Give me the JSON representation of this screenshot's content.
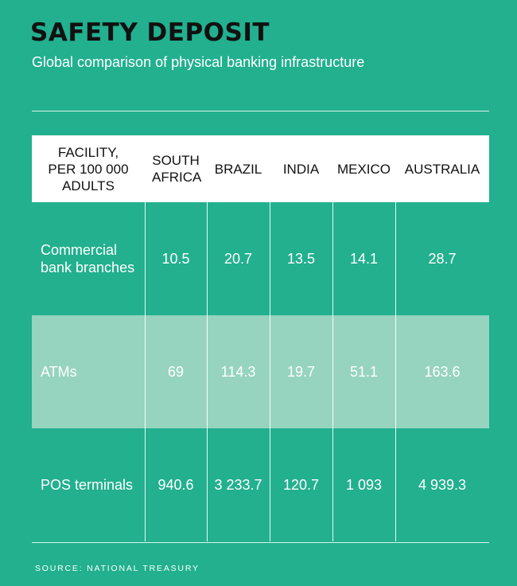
{
  "title": "SAFETY DEPOSIT",
  "subtitle": "Global comparison of physical banking infrastructure",
  "source": "SOURCE: NATIONAL TREASURY",
  "colors": {
    "background": "#22b08f",
    "header_band": "#ffffff",
    "highlight_row": "#96d4bf",
    "title": "#111111"
  },
  "chart_data": {
    "type": "table",
    "columns": [
      "FACILITY, PER 100 000 ADULTS",
      "SOUTH AFRICA",
      "BRAZIL",
      "INDIA",
      "MEXICO",
      "AUSTRALIA"
    ],
    "rows": [
      {
        "label": "Commercial bank branches",
        "values": [
          "10.5",
          "20.7",
          "13.5",
          "14.1",
          "28.7"
        ]
      },
      {
        "label": "ATMs",
        "values": [
          "69",
          "114.3",
          "19.7",
          "51.1",
          "163.6"
        ]
      },
      {
        "label": "POS terminals",
        "values": [
          "940.6",
          "3 233.7",
          "120.7",
          "1 093",
          "4 939.3"
        ]
      }
    ]
  }
}
